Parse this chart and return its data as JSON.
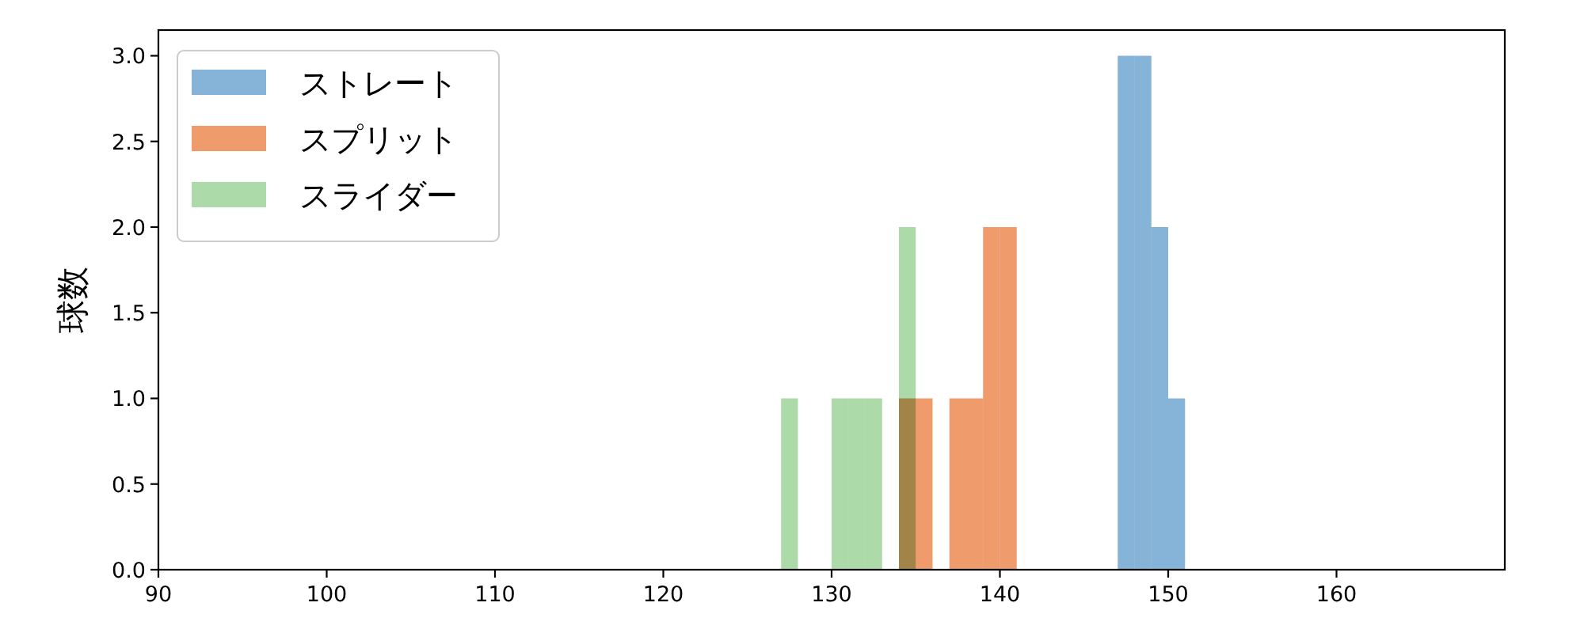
{
  "chart_data": {
    "type": "histogram",
    "ylabel": "球数",
    "xlim": [
      90,
      170
    ],
    "ylim": [
      0,
      3.15
    ],
    "xticks": [
      90,
      100,
      110,
      120,
      130,
      140,
      150,
      160
    ],
    "yticks": [
      {
        "value": 0,
        "label": "0.0"
      },
      {
        "value": 0.5,
        "label": "0.5"
      },
      {
        "value": 1,
        "label": "1.0"
      },
      {
        "value": 1.5,
        "label": "1.5"
      },
      {
        "value": 2,
        "label": "2.0"
      },
      {
        "value": 2.5,
        "label": "2.5"
      },
      {
        "value": 3,
        "label": "3.0"
      }
    ],
    "legend": "top left",
    "bins": [
      127,
      128,
      130,
      131,
      132,
      133,
      134,
      135,
      136,
      137,
      138,
      139,
      140,
      141,
      147,
      148,
      149,
      150,
      151
    ],
    "series": [
      {
        "name": "ストレート",
        "color": "#86b4d8",
        "values": [
          0,
          0,
          0,
          0,
          0,
          0,
          0,
          0,
          0,
          0,
          0,
          0,
          0,
          0,
          3,
          3,
          2,
          1
        ]
      },
      {
        "name": "スプリット",
        "color": "#f09b6c",
        "values": [
          0,
          0,
          0,
          0,
          0,
          0,
          1,
          1,
          0,
          1,
          1,
          2,
          2,
          0,
          0,
          0,
          0,
          0
        ]
      },
      {
        "name": "スライダー",
        "color": "#acdaa9",
        "values": [
          1,
          0,
          1,
          1,
          1,
          0,
          2,
          0,
          0,
          0,
          0,
          0,
          0,
          0,
          0,
          0,
          0,
          0
        ]
      }
    ]
  }
}
